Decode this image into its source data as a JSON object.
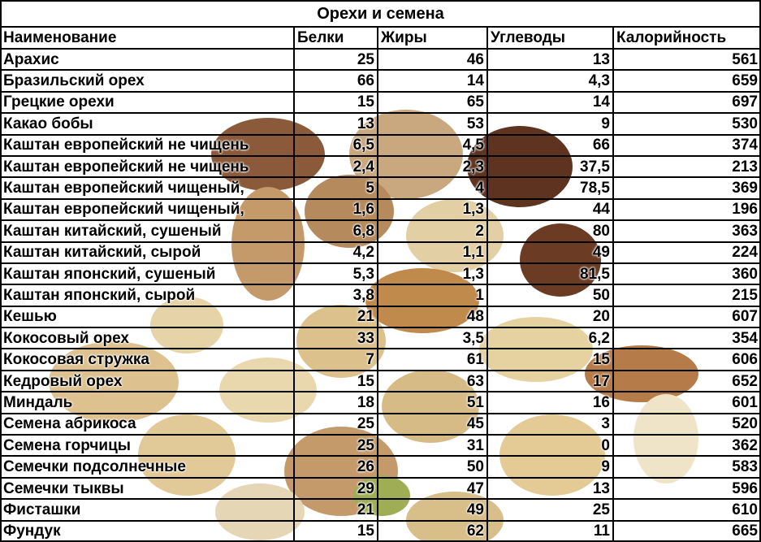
{
  "table": {
    "title": "Орехи и семена",
    "header": [
      "Наименование",
      "Белки",
      "Жиры",
      "Углеводы",
      "Калорийность"
    ],
    "rows": [
      [
        "Арахис",
        "25",
        "46",
        "13",
        "561"
      ],
      [
        "Бразильский орех",
        "66",
        "14",
        "4,3",
        "659"
      ],
      [
        "Грецкие орехи",
        "15",
        "65",
        "14",
        "697"
      ],
      [
        "Какао бобы",
        "13",
        "53",
        "9",
        "530"
      ],
      [
        "Каштан европейский не чищень",
        "6,5",
        "4,5",
        "66",
        "374"
      ],
      [
        "Каштан европейский не чищень",
        "2,4",
        "2,3",
        "37,5",
        "213"
      ],
      [
        "Каштан европейский чищеный,",
        "5",
        "4",
        "78,5",
        "369"
      ],
      [
        "Каштан европейский чищеный,",
        "1,6",
        "1,3",
        "44",
        "196"
      ],
      [
        "Каштан китайский, сушеный",
        "6,8",
        "2",
        "80",
        "363"
      ],
      [
        "Каштан китайский, сырой",
        "4,2",
        "1,1",
        "49",
        "224"
      ],
      [
        "Каштан японский, сушеный",
        "5,3",
        "1,3",
        "81,5",
        "360"
      ],
      [
        "Каштан японский, сырой",
        "3,8",
        "1",
        "50",
        "215"
      ],
      [
        "Кешью",
        "21",
        "48",
        "20",
        "607"
      ],
      [
        "Кокосовый орех",
        "33",
        "3,5",
        "6,2",
        "354"
      ],
      [
        "Кокосовая стружка",
        "7",
        "61",
        "15",
        "606"
      ],
      [
        "Кедровый орех",
        "15",
        "63",
        "17",
        "652"
      ],
      [
        "Миндаль",
        "18",
        "51",
        "16",
        "601"
      ],
      [
        "Семена абрикоса",
        "25",
        "45",
        "3",
        "520"
      ],
      [
        "Семена горчицы",
        "25",
        "31",
        "0",
        "362"
      ],
      [
        "Семечки подсолнечные",
        "26",
        "50",
        "9",
        "583"
      ],
      [
        "Семечки тыквы",
        "29",
        "47",
        "13",
        "596"
      ],
      [
        "Фисташки",
        "21",
        "49",
        "25",
        "610"
      ],
      [
        "Фундук",
        "15",
        "62",
        "11",
        "665"
      ]
    ]
  }
}
